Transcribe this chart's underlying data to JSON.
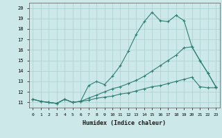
{
  "xlabel": "Humidex (Indice chaleur)",
  "bg_color": "#cce8e8",
  "grid_color": "#aacfcf",
  "line_color": "#2e7d72",
  "xlim": [
    -0.5,
    23.5
  ],
  "ylim": [
    10.5,
    20.5
  ],
  "xticks": [
    0,
    1,
    2,
    3,
    4,
    5,
    6,
    7,
    8,
    9,
    10,
    11,
    12,
    13,
    14,
    15,
    16,
    17,
    18,
    19,
    20,
    21,
    22,
    23
  ],
  "yticks": [
    11,
    12,
    13,
    14,
    15,
    16,
    17,
    18,
    19,
    20
  ],
  "line1_x": [
    0,
    1,
    2,
    3,
    4,
    5,
    6,
    7,
    8,
    9,
    10,
    11,
    12,
    13,
    14,
    15,
    16,
    17,
    18,
    19,
    20,
    21,
    22,
    23
  ],
  "line1_y": [
    11.3,
    11.1,
    11.0,
    10.9,
    11.3,
    11.0,
    11.1,
    12.6,
    13.0,
    12.7,
    13.5,
    14.5,
    15.9,
    17.5,
    18.7,
    19.6,
    18.8,
    18.7,
    19.3,
    18.8,
    16.3,
    15.0,
    13.8,
    12.5
  ],
  "line2_x": [
    0,
    1,
    2,
    3,
    4,
    5,
    6,
    7,
    8,
    9,
    10,
    11,
    12,
    13,
    14,
    15,
    16,
    17,
    18,
    19,
    20,
    21,
    22,
    23
  ],
  "line2_y": [
    11.3,
    11.1,
    11.0,
    10.9,
    11.3,
    11.0,
    11.1,
    11.4,
    11.7,
    12.0,
    12.3,
    12.5,
    12.8,
    13.1,
    13.5,
    14.0,
    14.5,
    15.0,
    15.5,
    16.2,
    16.3,
    15.0,
    13.8,
    12.5
  ],
  "line3_x": [
    0,
    1,
    2,
    3,
    4,
    5,
    6,
    7,
    8,
    9,
    10,
    11,
    12,
    13,
    14,
    15,
    16,
    17,
    18,
    19,
    20,
    21,
    22,
    23
  ],
  "line3_y": [
    11.3,
    11.1,
    11.0,
    10.9,
    11.3,
    11.0,
    11.1,
    11.2,
    11.4,
    11.5,
    11.6,
    11.8,
    11.9,
    12.1,
    12.3,
    12.5,
    12.6,
    12.8,
    13.0,
    13.2,
    13.4,
    12.5,
    12.4,
    12.4
  ]
}
